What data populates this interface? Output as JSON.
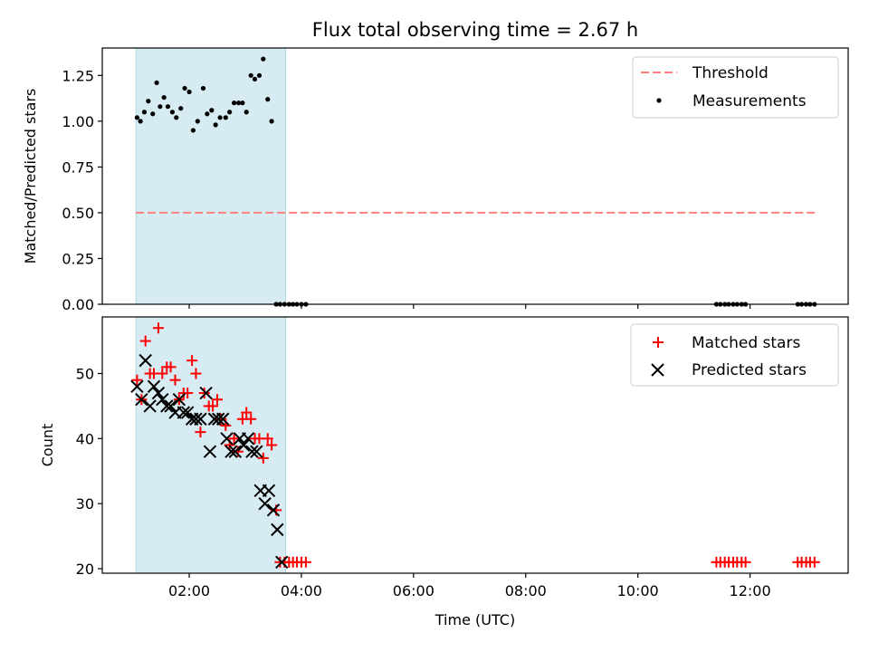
{
  "chart_data": [
    {
      "type": "scatter",
      "title": "Flux total observing time = 2.67 h",
      "xlabel": "",
      "ylabel": "Matched/Predicted stars",
      "xlim": [
        0.45,
        13.75
      ],
      "ylim": [
        0.0,
        1.4
      ],
      "yticks": [
        0.0,
        0.25,
        0.5,
        0.75,
        1.0,
        1.25
      ],
      "ytick_labels": [
        "0.00",
        "0.25",
        "0.50",
        "0.75",
        "1.00",
        "1.25"
      ],
      "xticks": [
        2,
        4,
        6,
        8,
        10,
        12
      ],
      "observing_window": [
        1.05,
        3.72
      ],
      "threshold": {
        "label": "Threshold",
        "y": 0.5,
        "x_range": [
          1.05,
          13.2
        ],
        "color": "#ff7f7f"
      },
      "measurements": {
        "label": "Measurements",
        "color": "#000000",
        "x": [
          1.07,
          1.13,
          1.2,
          1.27,
          1.35,
          1.42,
          1.48,
          1.55,
          1.62,
          1.7,
          1.77,
          1.85,
          1.92,
          2.0,
          2.07,
          2.15,
          2.25,
          2.32,
          2.4,
          2.47,
          2.55,
          2.65,
          2.72,
          2.8,
          2.88,
          2.95,
          3.02,
          3.1,
          3.17,
          3.25,
          3.32,
          3.4,
          3.47,
          3.55,
          3.62,
          3.7,
          3.78,
          3.85,
          3.92,
          4.0,
          4.08,
          11.4,
          11.47,
          11.55,
          11.62,
          11.7,
          11.77,
          11.85,
          11.92,
          12.85,
          12.92,
          13.0,
          13.07,
          13.15
        ],
        "y": [
          1.02,
          1.0,
          1.05,
          1.11,
          1.04,
          1.21,
          1.08,
          1.13,
          1.08,
          1.05,
          1.02,
          1.07,
          1.18,
          1.16,
          0.95,
          1.0,
          1.18,
          1.04,
          1.06,
          0.98,
          1.02,
          1.02,
          1.05,
          1.1,
          1.1,
          1.1,
          1.05,
          1.25,
          1.23,
          1.25,
          1.34,
          1.12,
          1.0,
          0.0,
          0.0,
          0.0,
          0.0,
          0.0,
          0.0,
          0.0,
          0.0,
          0.0,
          0.0,
          0.0,
          0.0,
          0.0,
          0.0,
          0.0,
          0.0,
          0.0,
          0.0,
          0.0,
          0.0,
          0.0
        ]
      }
    },
    {
      "type": "scatter",
      "title": "",
      "xlabel": "Time (UTC)",
      "ylabel": "Count",
      "xlim": [
        0.45,
        13.75
      ],
      "ylim": [
        19.3,
        58.7
      ],
      "yticks": [
        20,
        30,
        40,
        50
      ],
      "ytick_labels": [
        "20",
        "30",
        "40",
        "50"
      ],
      "xticks": [
        2,
        4,
        6,
        8,
        10,
        12
      ],
      "xtick_labels": [
        "02:00",
        "04:00",
        "06:00",
        "08:00",
        "10:00",
        "12:00"
      ],
      "observing_window": [
        1.05,
        3.72
      ],
      "series": [
        {
          "name": "Matched stars",
          "marker": "plus",
          "color": "#ff0000",
          "x": [
            1.07,
            1.15,
            1.22,
            1.3,
            1.37,
            1.45,
            1.52,
            1.6,
            1.67,
            1.75,
            1.82,
            1.9,
            1.97,
            2.05,
            2.12,
            2.2,
            2.27,
            2.35,
            2.42,
            2.5,
            2.57,
            2.65,
            2.72,
            2.8,
            2.87,
            2.95,
            3.02,
            3.1,
            3.17,
            3.25,
            3.32,
            3.4,
            3.47,
            3.55,
            3.62,
            3.7,
            3.78,
            3.85,
            3.92,
            4.0,
            4.08,
            11.4,
            11.47,
            11.55,
            11.62,
            11.7,
            11.77,
            11.85,
            11.92,
            12.85,
            12.92,
            13.0,
            13.07,
            13.15
          ],
          "y": [
            49,
            46,
            55,
            50,
            50,
            57,
            50,
            51,
            51,
            49,
            46,
            47,
            47,
            52,
            50,
            41,
            47,
            45,
            45,
            46,
            43,
            42,
            39,
            40,
            38,
            43,
            44,
            43,
            40,
            40,
            37,
            40,
            39,
            29,
            21,
            21,
            21,
            21,
            21,
            21,
            21,
            21,
            21,
            21,
            21,
            21,
            21,
            21,
            21,
            21,
            21,
            21,
            21,
            21
          ]
        },
        {
          "name": "Predicted stars",
          "marker": "x",
          "color": "#000000",
          "x": [
            1.07,
            1.15,
            1.22,
            1.3,
            1.37,
            1.45,
            1.52,
            1.6,
            1.67,
            1.75,
            1.82,
            1.9,
            1.97,
            2.05,
            2.12,
            2.2,
            2.3,
            2.37,
            2.45,
            2.52,
            2.6,
            2.67,
            2.75,
            2.82,
            2.9,
            2.97,
            3.05,
            3.12,
            3.2,
            3.27,
            3.35,
            3.42,
            3.5,
            3.57,
            3.65
          ],
          "y": [
            48,
            46,
            52,
            45,
            48,
            47,
            46,
            45,
            45,
            44,
            46,
            44,
            44,
            43,
            43,
            43,
            47,
            38,
            43,
            43,
            43,
            40,
            38,
            38,
            40,
            39,
            40,
            38,
            38,
            32,
            30,
            32,
            29,
            26,
            21
          ]
        }
      ]
    }
  ]
}
